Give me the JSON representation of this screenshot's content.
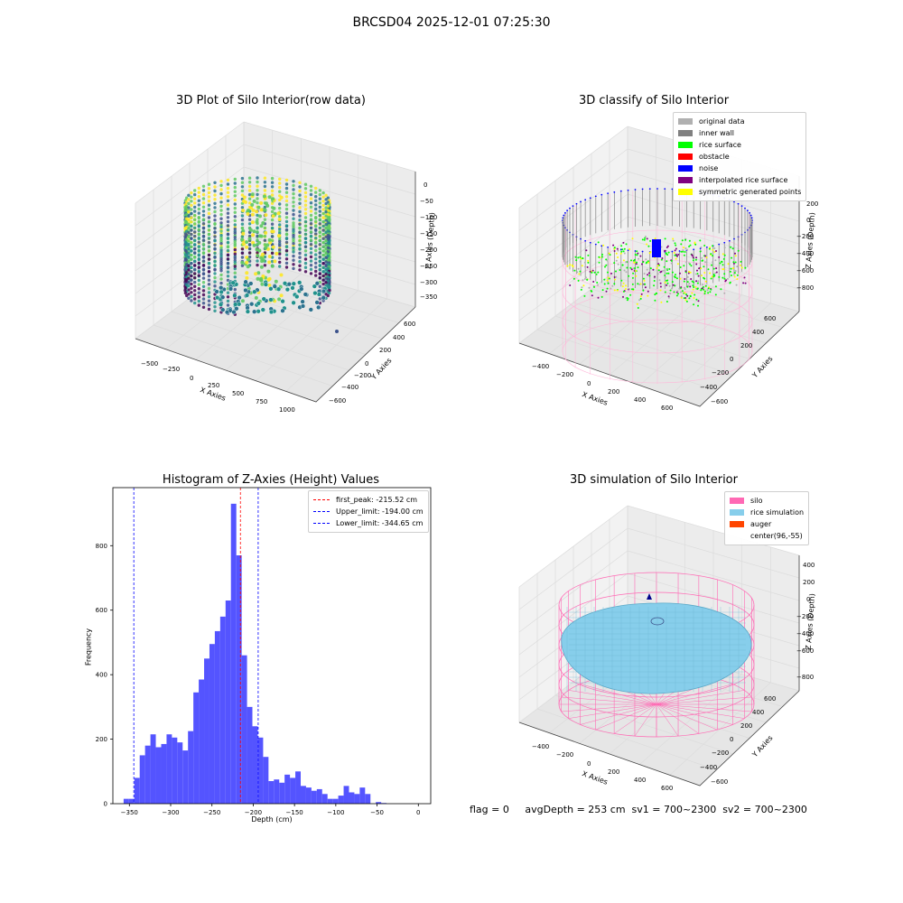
{
  "figure": {
    "suptitle": "BRCSD04 2025-12-01 07:25:30",
    "footer": "flag = 0     avgDepth = 253 cm  sv1 = 700~2300  sv2 = 700~2300"
  },
  "panels": {
    "p1": {
      "title": "3D Plot of Silo Interior(row data)",
      "xlabel": "X Axies",
      "ylabel": "Y Axies",
      "zlabel": "Z Axies (Depth)",
      "xticks": [
        "−500",
        "−250",
        "0",
        "250",
        "500",
        "750",
        "1000"
      ],
      "yticks": [
        "600",
        "400",
        "200",
        "0",
        "−200",
        "−400",
        "−600"
      ],
      "zticks": [
        "0",
        "−50",
        "−100",
        "−150",
        "−200",
        "−250",
        "−300",
        "−350"
      ]
    },
    "p2": {
      "title": "3D classify of Silo Interior",
      "xlabel": "X Axies",
      "ylabel": "Y Axies",
      "zlabel": "Z Axies (Depth)",
      "xticks": [
        "−400",
        "−200",
        "0",
        "200",
        "400",
        "600"
      ],
      "yticks": [
        "600",
        "400",
        "200",
        "0",
        "−200",
        "−400",
        "−600"
      ],
      "zticks": [
        "200",
        "0",
        "−200",
        "−400",
        "−600",
        "−800"
      ],
      "legend": [
        {
          "label": "original data",
          "color": "#b0b0b0"
        },
        {
          "label": "inner wall",
          "color": "#808080"
        },
        {
          "label": "rice surface",
          "color": "#00ff00"
        },
        {
          "label": "obstacle",
          "color": "#ff0000"
        },
        {
          "label": "noise",
          "color": "#0000ff"
        },
        {
          "label": "interpolated rice surface",
          "color": "#800080"
        },
        {
          "label": "symmetric generated points",
          "color": "#ffff00"
        }
      ]
    },
    "p4": {
      "title": "3D simulation of Silo Interior",
      "xlabel": "X Axies",
      "ylabel": "Y Axies",
      "zlabel": "Z Axies (Depth)",
      "xticks": [
        "−400",
        "−200",
        "0",
        "200",
        "400",
        "600"
      ],
      "yticks": [
        "600",
        "400",
        "200",
        "0",
        "−200",
        "−400",
        "−600"
      ],
      "zticks": [
        "400",
        "200",
        "0",
        "−200",
        "−400",
        "−600",
        "−800"
      ],
      "legend": [
        {
          "label": "silo",
          "color": "#ff69b4"
        },
        {
          "label": "rice simulation",
          "color": "#87ceeb"
        },
        {
          "label": "auger",
          "color": "#ff4500"
        },
        {
          "label": "center(96,-55)",
          "color": ""
        }
      ]
    }
  },
  "colors": {
    "hist_bar": "#4b4bff",
    "first_peak": "#ff0000",
    "limits": "#0000ff",
    "pane": "#f2f2f2",
    "grid": "#dcdcdc",
    "silo": "#ff69b4",
    "rice": "#87ceeb"
  },
  "chart_data": {
    "type": "bar",
    "title": "Histogram of Z-Axies (Height) Values",
    "xlabel": "Depth (cm)",
    "ylabel": "Frequency",
    "xlim": [
      -370,
      15
    ],
    "ylim": [
      0,
      980
    ],
    "xticks": [
      -350,
      -300,
      -250,
      -200,
      -150,
      -100,
      -50,
      0
    ],
    "yticks": [
      0,
      200,
      400,
      600,
      800
    ],
    "bin_width": 6.5,
    "bins": [
      {
        "x": -357,
        "count": 15
      },
      {
        "x": -350.5,
        "count": 15
      },
      {
        "x": -344,
        "count": 80
      },
      {
        "x": -337.5,
        "count": 150
      },
      {
        "x": -331,
        "count": 180
      },
      {
        "x": -324.5,
        "count": 215
      },
      {
        "x": -318,
        "count": 175
      },
      {
        "x": -311.5,
        "count": 185
      },
      {
        "x": -305,
        "count": 215
      },
      {
        "x": -298.5,
        "count": 205
      },
      {
        "x": -292,
        "count": 190
      },
      {
        "x": -285.5,
        "count": 165
      },
      {
        "x": -279,
        "count": 225
      },
      {
        "x": -272.5,
        "count": 345
      },
      {
        "x": -266,
        "count": 385
      },
      {
        "x": -259.5,
        "count": 450
      },
      {
        "x": -253,
        "count": 495
      },
      {
        "x": -246.5,
        "count": 535
      },
      {
        "x": -240,
        "count": 580
      },
      {
        "x": -233.5,
        "count": 630
      },
      {
        "x": -227,
        "count": 930
      },
      {
        "x": -220.5,
        "count": 770
      },
      {
        "x": -214,
        "count": 460
      },
      {
        "x": -207.5,
        "count": 300
      },
      {
        "x": -201,
        "count": 240
      },
      {
        "x": -194.5,
        "count": 205
      },
      {
        "x": -188,
        "count": 145
      },
      {
        "x": -181.5,
        "count": 70
      },
      {
        "x": -175,
        "count": 75
      },
      {
        "x": -168.5,
        "count": 65
      },
      {
        "x": -162,
        "count": 90
      },
      {
        "x": -155.5,
        "count": 80
      },
      {
        "x": -149,
        "count": 100
      },
      {
        "x": -142.5,
        "count": 55
      },
      {
        "x": -136,
        "count": 50
      },
      {
        "x": -129.5,
        "count": 40
      },
      {
        "x": -123,
        "count": 45
      },
      {
        "x": -116.5,
        "count": 30
      },
      {
        "x": -110,
        "count": 15
      },
      {
        "x": -103.5,
        "count": 15
      },
      {
        "x": -97,
        "count": 25
      },
      {
        "x": -90.5,
        "count": 55
      },
      {
        "x": -84,
        "count": 35
      },
      {
        "x": -77.5,
        "count": 30
      },
      {
        "x": -71,
        "count": 50
      },
      {
        "x": -64.5,
        "count": 30
      },
      {
        "x": -51.5,
        "count": 5
      },
      {
        "x": -45,
        "count": 2
      }
    ],
    "vlines": [
      {
        "name": "first_peak: -215.52 cm",
        "x": -215.52,
        "color": "#ff0000"
      },
      {
        "name": "Upper_limit: -194.00 cm",
        "x": -194.0,
        "color": "#0000ff"
      },
      {
        "name": "Lower_limit: -344.65 cm",
        "x": -344.65,
        "color": "#0000ff"
      }
    ],
    "legend": "top-right"
  }
}
